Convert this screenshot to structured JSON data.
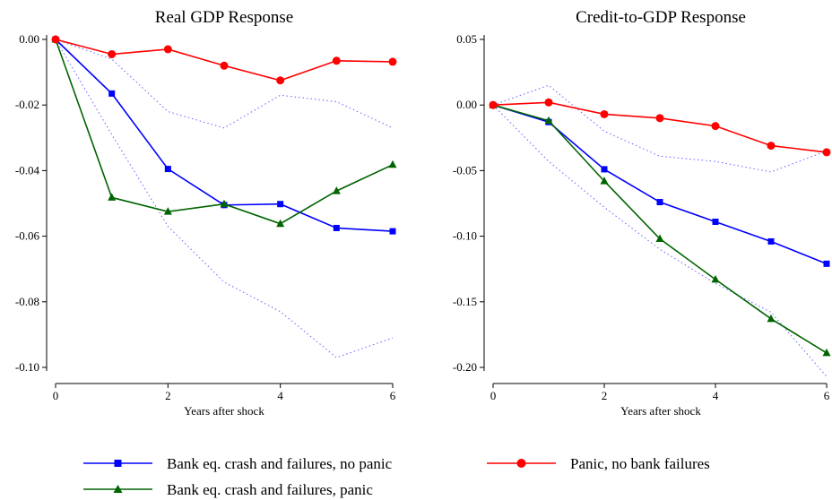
{
  "chart_data": [
    {
      "type": "line",
      "title": "Real GDP Response",
      "xlabel": "Years after shock",
      "ylabel": "",
      "xlim": [
        0,
        6
      ],
      "ylim": [
        -0.1,
        0.0
      ],
      "grid": false,
      "x_ticks": [
        "0",
        "2",
        "4",
        "6"
      ],
      "y_ticks": [
        "0.00",
        "-0.02",
        "-0.04",
        "-0.06",
        "-0.08",
        "-0.10"
      ],
      "x": [
        0,
        1,
        2,
        3,
        4,
        5,
        6
      ],
      "series": [
        {
          "name": "Bank eq. crash and failures, no panic",
          "color": "#0000ff",
          "marker": "square",
          "values": [
            0.0,
            -0.0165,
            -0.0395,
            -0.0505,
            -0.0502,
            -0.0575,
            -0.0585
          ]
        },
        {
          "name": "Bank eq. crash and failures, panic",
          "color": "#006400",
          "marker": "triangle",
          "values": [
            0.0,
            -0.0482,
            -0.0525,
            -0.0502,
            -0.0562,
            -0.0462,
            -0.0382
          ]
        },
        {
          "name": "Panic, no bank failures",
          "color": "#ff0000",
          "marker": "circle",
          "values": [
            0.0,
            -0.0045,
            -0.003,
            -0.008,
            -0.0125,
            -0.0065,
            -0.0068
          ]
        },
        {
          "name": "",
          "color": "#7070ff",
          "marker": "none",
          "style": "dotted",
          "values": [
            0.0,
            -0.006,
            -0.022,
            -0.027,
            -0.017,
            -0.019,
            -0.027
          ]
        },
        {
          "name": "",
          "color": "#7070ff",
          "marker": "none",
          "style": "dotted",
          "values": [
            0.0,
            -0.029,
            -0.057,
            -0.074,
            -0.083,
            -0.097,
            -0.091
          ]
        }
      ]
    },
    {
      "type": "line",
      "title": "Credit-to-GDP Response",
      "xlabel": "Years after shock",
      "ylabel": "",
      "xlim": [
        0,
        6
      ],
      "ylim": [
        -0.2,
        0.05
      ],
      "grid": false,
      "x_ticks": [
        "0",
        "2",
        "4",
        "6"
      ],
      "y_ticks": [
        "0.05",
        "0.00",
        "-0.05",
        "-0.10",
        "-0.15",
        "-0.20"
      ],
      "x": [
        0,
        1,
        2,
        3,
        4,
        5,
        6
      ],
      "series": [
        {
          "name": "Bank eq. crash and failures, no panic",
          "color": "#0000ff",
          "marker": "square",
          "values": [
            0.0,
            -0.013,
            -0.049,
            -0.074,
            -0.089,
            -0.104,
            -0.121
          ]
        },
        {
          "name": "Bank eq. crash and failures, panic",
          "color": "#006400",
          "marker": "triangle",
          "values": [
            0.0,
            -0.012,
            -0.058,
            -0.102,
            -0.133,
            -0.163,
            -0.189
          ]
        },
        {
          "name": "Panic, no bank failures",
          "color": "#ff0000",
          "marker": "circle",
          "values": [
            0.0,
            0.002,
            -0.007,
            -0.01,
            -0.016,
            -0.031,
            -0.036
          ]
        },
        {
          "name": "",
          "color": "#7070ff",
          "marker": "none",
          "style": "dotted",
          "values": [
            0.0,
            0.015,
            -0.02,
            -0.039,
            -0.043,
            -0.051,
            -0.035
          ]
        },
        {
          "name": "",
          "color": "#7070ff",
          "marker": "none",
          "style": "dotted",
          "values": [
            0.0,
            -0.043,
            -0.078,
            -0.11,
            -0.136,
            -0.158,
            -0.207
          ]
        }
      ]
    }
  ],
  "legend": {
    "placement": "bottom",
    "items": [
      {
        "label": "Bank eq. crash and failures, no panic",
        "color": "#0000ff",
        "marker": "square"
      },
      {
        "label": "Panic, no bank failures",
        "color": "#ff0000",
        "marker": "circle"
      },
      {
        "label": "Bank eq. crash and failures, panic",
        "color": "#006400",
        "marker": "triangle"
      }
    ]
  }
}
